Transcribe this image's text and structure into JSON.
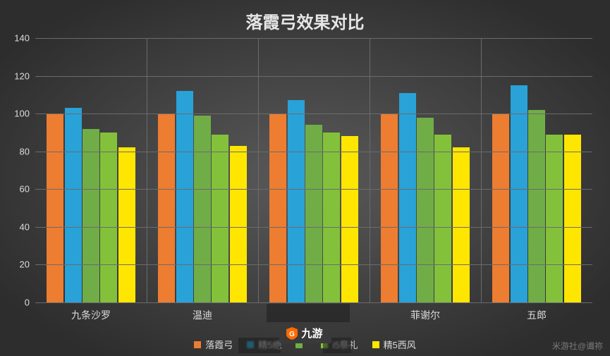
{
  "chart": {
    "type": "bar",
    "title": "落霞弓效果对比",
    "title_color": "#e6e6e6",
    "title_fontsize": 24,
    "background": {
      "type": "radial-gradient",
      "inner_color": "#5a5a5a",
      "outer_color": "#2d2d2d"
    },
    "ylim": [
      0,
      140
    ],
    "ytick_step": 20,
    "yticks": [
      0,
      20,
      40,
      60,
      80,
      100,
      120,
      140
    ],
    "grid_color": "#6b6b6b",
    "axis_text_color": "#dcdcdc",
    "axis_fontsize": 13,
    "categories": [
      "九条沙罗",
      "温迪",
      "",
      "菲谢尔",
      "五郎"
    ],
    "series": [
      {
        "name": "落霞弓",
        "color": "#ed7d31",
        "values": [
          100,
          100,
          100,
          100,
          100
        ]
      },
      {
        "name": "精5绝",
        "color": "#29a2d8",
        "values": [
          103,
          112,
          107,
          111,
          115
        ]
      },
      {
        "name": "",
        "color": "#70ad47",
        "values": [
          92,
          99,
          94,
          98,
          102
        ]
      },
      {
        "name": "i5祭礼",
        "color": "#84c13b",
        "values": [
          90,
          89,
          90,
          89,
          89
        ]
      },
      {
        "name": "精5西风",
        "color": "#ffe600",
        "values": [
          82,
          83,
          88,
          82,
          89
        ]
      }
    ],
    "series_legend_labels": [
      "落霞弓",
      "精5绝",
      "",
      "i5祭礼",
      "精5西风"
    ],
    "legend_text_color": "#dcdcdc",
    "vdivider_color": "#6b6b6b",
    "bar_group_padding": 0.1,
    "bar_width_ratio": 0.95
  },
  "attribution": "米游社@谶祢",
  "attribution_color": "#b8b8b8",
  "watermark": {
    "text": "九游",
    "bg": "#3a3a3a",
    "accent": "#ff6a00",
    "fg": "#ffffff"
  }
}
